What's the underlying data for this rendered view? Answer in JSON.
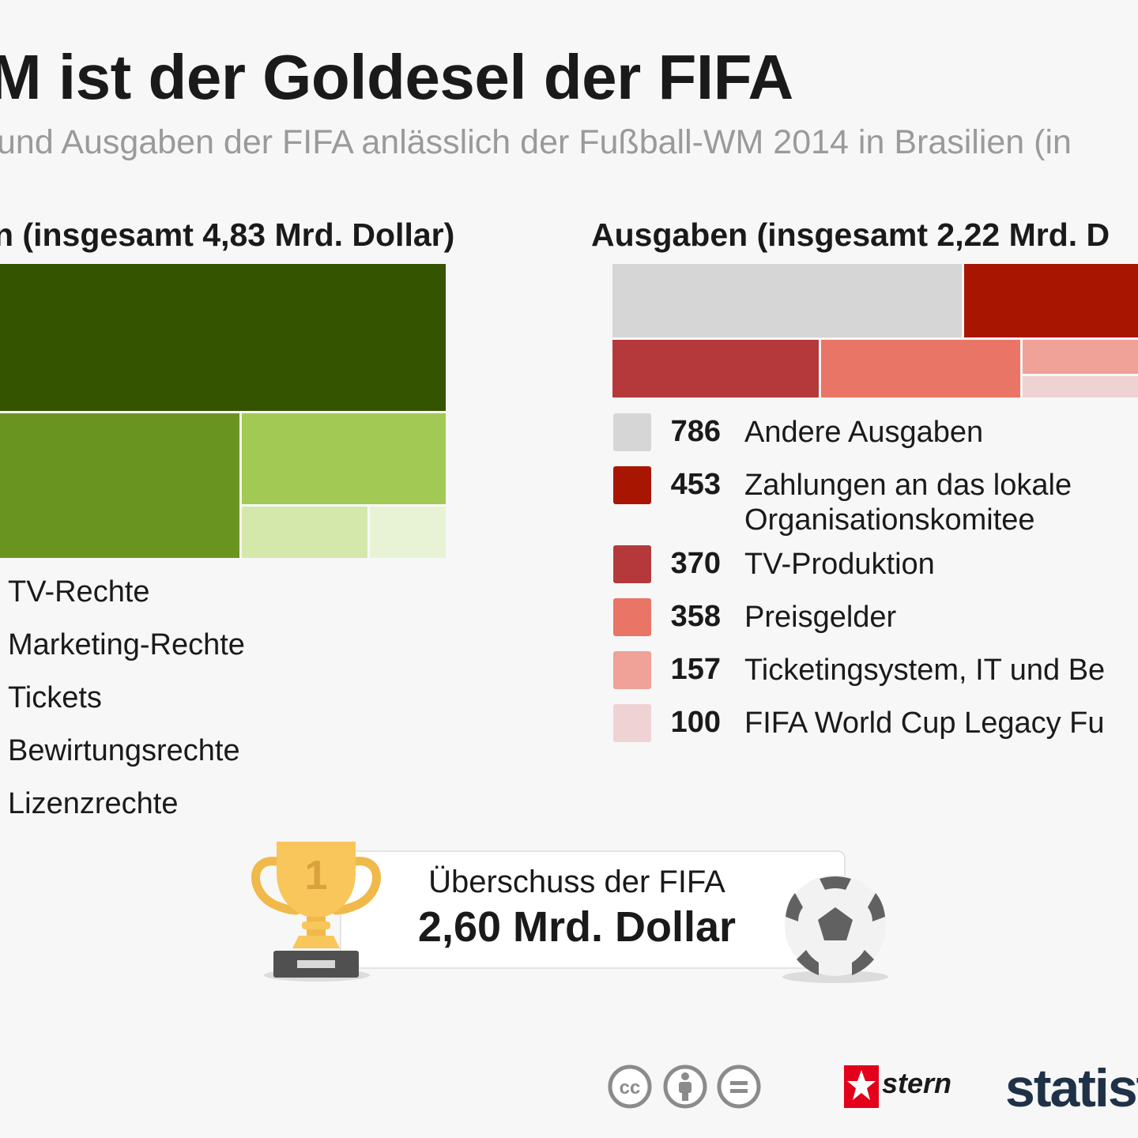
{
  "header": {
    "title": "M ist der Goldesel der FIFA",
    "subtitle": "und Ausgaben der FIFA anlässlich der Fußball-WM 2014 in Brasilien (in"
  },
  "income": {
    "heading": "n (insgesamt 4,83 Mrd. Dollar)",
    "labels": [
      "TV-Rechte",
      "Marketing-Rechte",
      "Tickets",
      "Bewirtungsrechte",
      "Lizenzrechte"
    ]
  },
  "expenses": {
    "heading": "Ausgaben (insgesamt 2,22 Mrd. D",
    "legend": [
      {
        "value": "786",
        "label": "Andere Ausgaben",
        "color": "#d6d6d6"
      },
      {
        "value": "453",
        "label": "Zahlungen an das lokale\nOrganisationskomitee",
        "color": "#a81500"
      },
      {
        "value": "370",
        "label": "TV-Produktion",
        "color": "#b5393b"
      },
      {
        "value": "358",
        "label": "Preisgelder",
        "color": "#e87565"
      },
      {
        "value": "157",
        "label": "Ticketingsystem, IT und Be",
        "color": "#f0a198"
      },
      {
        "value": "100",
        "label": "FIFA World Cup Legacy Fu",
        "color": "#efd2d4"
      }
    ]
  },
  "surplus": {
    "label": "Überschuss der FIFA",
    "value": "2,60 Mrd. Dollar",
    "trophy_number": "1"
  },
  "footer": {
    "license_icons": [
      "cc-icon",
      "by-icon",
      "nd-icon"
    ],
    "partner": "stern",
    "brand": "statist"
  },
  "chart_data": [
    {
      "type": "treemap",
      "title": "n (insgesamt 4,83 Mrd. Dollar)",
      "categories": [
        "TV-Rechte",
        "Marketing-Rechte",
        "Tickets",
        "Bewirtungsrechte",
        "Lizenzrechte"
      ],
      "colors": [
        "#355400",
        "#6a9420",
        "#a2c953",
        "#d4e8ab",
        "#e8f3d6"
      ]
    },
    {
      "type": "treemap",
      "title": "Ausgaben (insgesamt 2,22 Mrd. D",
      "categories": [
        "Andere Ausgaben",
        "Zahlungen an das lokale Organisationskomitee",
        "TV-Produktion",
        "Preisgelder",
        "Ticketingsystem, IT und Be",
        "FIFA World Cup Legacy Fu"
      ],
      "values": [
        786,
        453,
        370,
        358,
        157,
        100
      ],
      "colors": [
        "#d6d6d6",
        "#a81500",
        "#b5393b",
        "#e87565",
        "#f0a198",
        "#efd2d4"
      ]
    }
  ]
}
